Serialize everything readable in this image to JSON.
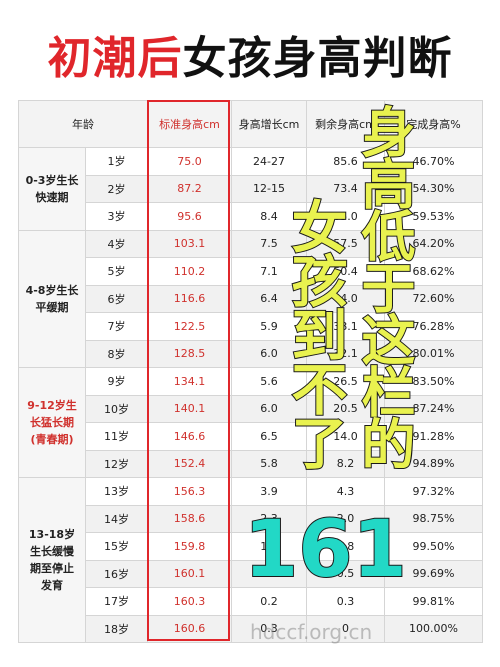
{
  "title": {
    "part1": "初潮后",
    "part2": "女孩身高判断"
  },
  "table": {
    "headers": [
      "年龄",
      "标准身高cm",
      "身高增长cm",
      "剩余身高cm",
      "完成身高%"
    ],
    "groups": [
      {
        "label_lines": [
          "0-3岁生长",
          "快速期"
        ],
        "color": "#222222",
        "rows": [
          [
            "1岁",
            "75.0",
            "24-27",
            "85.6",
            "46.70%"
          ],
          [
            "2岁",
            "87.2",
            "12-15",
            "73.4",
            "54.30%"
          ],
          [
            "3岁",
            "95.6",
            "8.4",
            "65.0",
            "59.53%"
          ]
        ]
      },
      {
        "label_lines": [
          "4-8岁生长",
          "平缓期"
        ],
        "color": "#222222",
        "rows": [
          [
            "4岁",
            "103.1",
            "7.5",
            "57.5",
            "64.20%"
          ],
          [
            "5岁",
            "110.2",
            "7.1",
            "50.4",
            "68.62%"
          ],
          [
            "6岁",
            "116.6",
            "6.4",
            "44.0",
            "72.60%"
          ],
          [
            "7岁",
            "122.5",
            "5.9",
            "38.1",
            "76.28%"
          ],
          [
            "8岁",
            "128.5",
            "6.0",
            "32.1",
            "80.01%"
          ]
        ]
      },
      {
        "label_lines": [
          "9-12岁生",
          "长猛长期",
          "(青春期)"
        ],
        "color": "#d0312d",
        "rows": [
          [
            "9岁",
            "134.1",
            "5.6",
            "26.5",
            "83.50%"
          ],
          [
            "10岁",
            "140.1",
            "6.0",
            "20.5",
            "87.24%"
          ],
          [
            "11岁",
            "146.6",
            "6.5",
            "14.0",
            "91.28%"
          ],
          [
            "12岁",
            "152.4",
            "5.8",
            "8.2",
            "94.89%"
          ]
        ]
      },
      {
        "label_lines": [
          "13-18岁",
          "生长缓慢",
          "期至停止",
          "发育"
        ],
        "color": "#222222",
        "rows": [
          [
            "13岁",
            "156.3",
            "3.9",
            "4.3",
            "97.32%"
          ],
          [
            "14岁",
            "158.6",
            "2.3",
            "2.0",
            "98.75%"
          ],
          [
            "15岁",
            "159.8",
            "1.2",
            "0.8",
            "99.50%"
          ],
          [
            "16岁",
            "160.1",
            "0.3",
            "0.5",
            "99.69%"
          ],
          [
            "17岁",
            "160.3",
            "0.2",
            "0.3",
            "99.81%"
          ],
          [
            "18岁",
            "160.6",
            "0.3",
            "0",
            "100.00%"
          ]
        ]
      }
    ]
  },
  "overlay": {
    "line1": "身高低于这栏的",
    "line2": "女孩到不了",
    "number": "161"
  },
  "watermark": "hdccf.org.cn"
}
